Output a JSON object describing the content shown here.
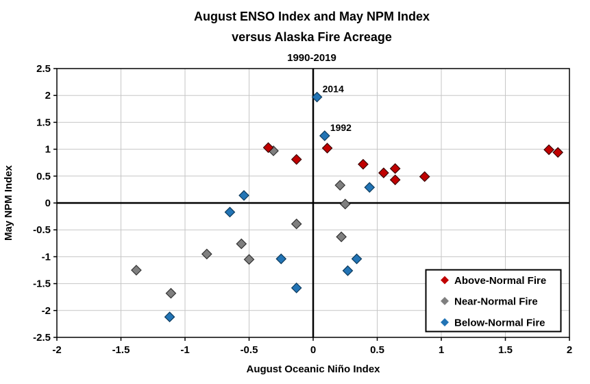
{
  "title": {
    "line1": "August ENSO Index and May NPM Index",
    "line2": "versus Alaska Fire Acreage",
    "line3": "1990-2019"
  },
  "chart_data": {
    "type": "scatter",
    "xlabel": "August Oceanic Niño Index",
    "ylabel": "May NPM Index",
    "xlim": [
      -2,
      2
    ],
    "ylim": [
      -2.5,
      2.5
    ],
    "xticks": [
      "-2",
      "-1.5",
      "-1",
      "-0.5",
      "0",
      "0.5",
      "1",
      "1.5",
      "2"
    ],
    "yticks": [
      "2.5",
      "2",
      "1.5",
      "1",
      "0.5",
      "0",
      "-0.5",
      "-1",
      "-1.5",
      "-2",
      "-2.5"
    ],
    "grid": true,
    "gridline_color": "#C6C6C6",
    "zero_lines": true,
    "legend_position": "bottom-right",
    "series": [
      {
        "name": "Above-Normal Fire",
        "color": "#C00000",
        "stroke": "#3A0000",
        "points": [
          [
            -0.35,
            1.03
          ],
          [
            -0.13,
            0.81
          ],
          [
            0.11,
            1.02
          ],
          [
            0.39,
            0.72
          ],
          [
            0.55,
            0.56
          ],
          [
            0.64,
            0.64
          ],
          [
            0.64,
            0.43
          ],
          [
            0.87,
            0.49
          ],
          [
            1.84,
            0.99
          ],
          [
            1.91,
            0.94
          ]
        ]
      },
      {
        "name": "Near-Normal Fire",
        "color": "#7F7F7F",
        "stroke": "#333333",
        "points": [
          [
            -0.31,
            0.97
          ],
          [
            0.21,
            0.33
          ],
          [
            0.25,
            -0.02
          ],
          [
            -0.13,
            -0.39
          ],
          [
            0.22,
            -0.63
          ],
          [
            -0.56,
            -0.76
          ],
          [
            -0.83,
            -0.95
          ],
          [
            -0.5,
            -1.05
          ],
          [
            -1.38,
            -1.25
          ],
          [
            -1.11,
            -1.68
          ]
        ]
      },
      {
        "name": "Below-Normal Fire",
        "color": "#2274B5",
        "stroke": "#0D3A5C",
        "points": [
          [
            0.03,
            1.97
          ],
          [
            0.09,
            1.25
          ],
          [
            -0.54,
            0.14
          ],
          [
            0.44,
            0.29
          ],
          [
            -0.65,
            -0.17
          ],
          [
            -0.25,
            -1.04
          ],
          [
            0.34,
            -1.04
          ],
          [
            0.27,
            -1.26
          ],
          [
            -0.13,
            -1.58
          ],
          [
            -1.12,
            -2.12
          ]
        ]
      }
    ],
    "annotations": [
      {
        "text": "2014",
        "x": 0.03,
        "y": 1.97
      },
      {
        "text": "1992",
        "x": 0.09,
        "y": 1.25
      }
    ]
  }
}
